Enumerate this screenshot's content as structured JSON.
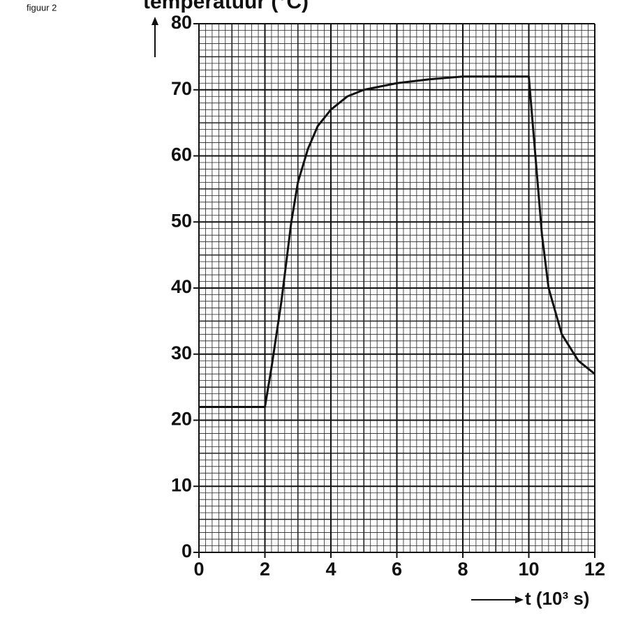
{
  "chart_data": {
    "type": "line",
    "figure_label": "figuur 2",
    "y_label": "temperatuur (°C)",
    "x_label": "t (10³ s)",
    "x": [
      0,
      2,
      2.2,
      2.5,
      2.8,
      3,
      3.3,
      3.6,
      4,
      4.5,
      5,
      6,
      7,
      8,
      10,
      10.2,
      10.4,
      10.6,
      11,
      11.5,
      12
    ],
    "series": [
      {
        "color": "#111111",
        "values": [
          22,
          22,
          28,
          38,
          50,
          56,
          61,
          64.5,
          67,
          69,
          70,
          71,
          71.6,
          72,
          72,
          60,
          48,
          40,
          33,
          29,
          27
        ]
      }
    ],
    "xlim": [
      0,
      12
    ],
    "ylim": [
      0,
      80
    ],
    "xticks": [
      0,
      2,
      4,
      6,
      8,
      10,
      12
    ],
    "yticks": [
      0,
      10,
      20,
      30,
      40,
      50,
      60,
      70,
      80
    ],
    "grid": true
  }
}
